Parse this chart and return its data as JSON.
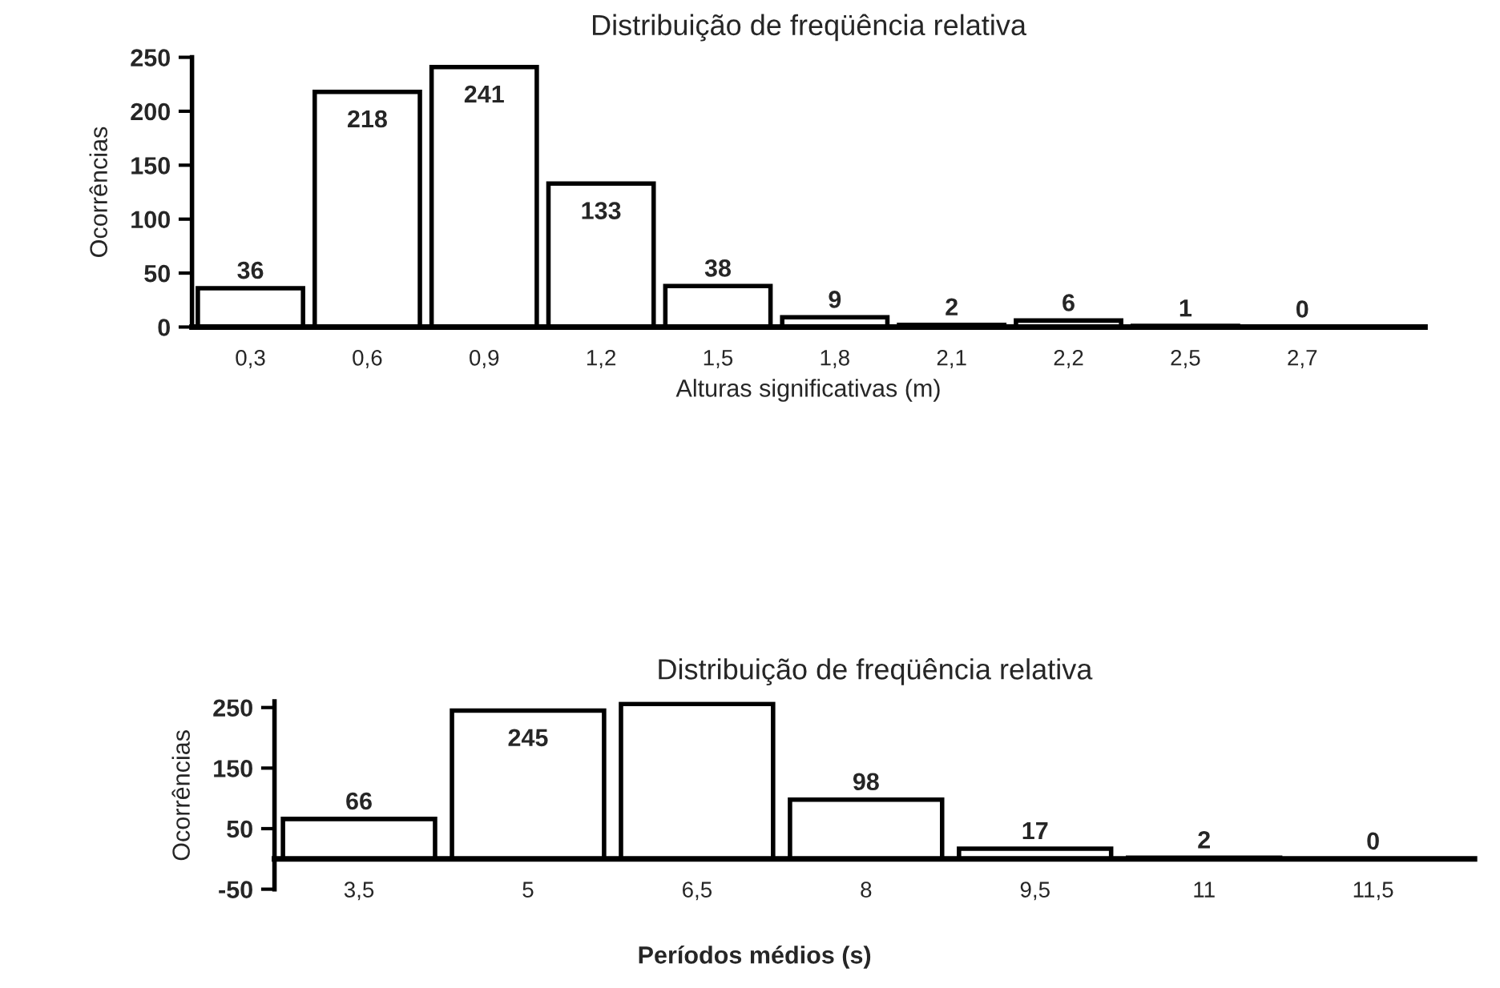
{
  "chart_data": [
    {
      "type": "bar",
      "title": "Distribuição de freqüência relativa",
      "xlabel": "Alturas significativas (m)",
      "ylabel": "Ocorrências",
      "categories": [
        "0,3",
        "0,6",
        "0,9",
        "1,2",
        "1,5",
        "1,8",
        "2,1",
        "2,2",
        "2,5",
        "2,7"
      ],
      "values": [
        36,
        218,
        241,
        133,
        38,
        9,
        2,
        6,
        1,
        0
      ],
      "color": "#ffffff",
      "ylim": [
        0,
        250
      ],
      "yticks": [
        0,
        50,
        100,
        150,
        200,
        250
      ],
      "grid": false,
      "data_labels": true
    },
    {
      "type": "bar",
      "title": "Distribuição de freqüência relativa",
      "xlabel": "Períodos médios (s)",
      "ylabel": "Ocorrências",
      "categories": [
        "3,5",
        "5",
        "6,5",
        "8",
        "9,5",
        "11",
        "11,5"
      ],
      "values": [
        66,
        245,
        256,
        98,
        17,
        2,
        0
      ],
      "color": "#ffffff",
      "value_labels": [
        "66",
        "245",
        null,
        "98",
        "17",
        "2",
        "0"
      ],
      "ylim": [
        -50,
        260
      ],
      "yticks": [
        -50,
        50,
        150,
        250
      ],
      "grid": false
    }
  ]
}
